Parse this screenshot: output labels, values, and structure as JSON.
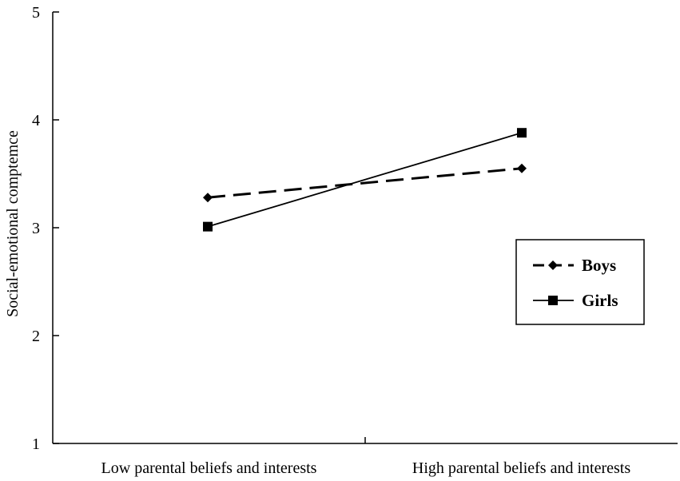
{
  "chart_data": {
    "type": "line",
    "title": "",
    "xlabel": "",
    "ylabel": "Social-emotional comptemce",
    "categories": [
      "Low parental beliefs and interests",
      "High parental beliefs and interests"
    ],
    "ylim": [
      1,
      5
    ],
    "yticks": [
      "1",
      "2",
      "3",
      "4",
      "5"
    ],
    "grid": false,
    "legend_position": "right",
    "series": [
      {
        "name": "Boys",
        "values": [
          3.28,
          3.55
        ],
        "line_style": "dashed",
        "marker": "diamond",
        "color": "#000000"
      },
      {
        "name": "Girls",
        "values": [
          3.01,
          3.88
        ],
        "line_style": "solid",
        "marker": "square",
        "color": "#000000"
      }
    ]
  }
}
